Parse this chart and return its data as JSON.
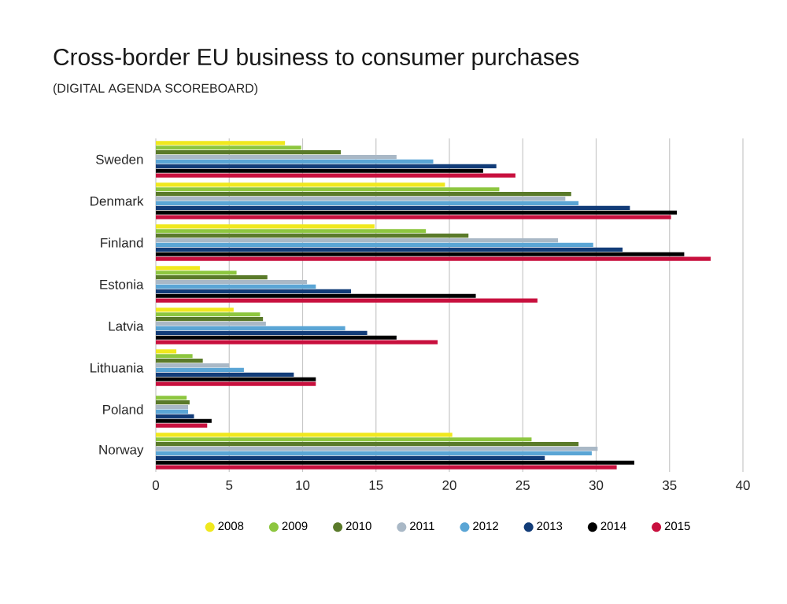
{
  "chart_data": {
    "type": "bar",
    "orientation": "horizontal",
    "title": "Cross-border EU business to consumer purchases",
    "subtitle": "(DIGITAL AGENDA SCOREBOARD)",
    "categories": [
      "Sweden",
      "Denmark",
      "Finland",
      "Estonia",
      "Latvia",
      "Lithuania",
      "Poland",
      "Norway"
    ],
    "series": [
      {
        "name": "2008",
        "color": "#f0e81e",
        "values": [
          8.8,
          19.7,
          14.9,
          3.0,
          5.3,
          1.4,
          null,
          20.2
        ]
      },
      {
        "name": "2009",
        "color": "#8dc63f",
        "values": [
          9.9,
          23.4,
          18.4,
          5.5,
          7.1,
          2.5,
          2.1,
          25.6
        ]
      },
      {
        "name": "2010",
        "color": "#5a7a2a",
        "values": [
          12.6,
          28.3,
          21.3,
          7.6,
          7.3,
          3.2,
          2.3,
          28.8
        ]
      },
      {
        "name": "2011",
        "color": "#a9b8c6",
        "values": [
          16.4,
          27.9,
          27.4,
          10.3,
          7.5,
          5.0,
          2.2,
          30.1
        ]
      },
      {
        "name": "2012",
        "color": "#5aa5d5",
        "values": [
          18.9,
          28.8,
          29.8,
          10.9,
          12.9,
          6.0,
          2.2,
          29.7
        ]
      },
      {
        "name": "2013",
        "color": "#123c78",
        "values": [
          23.2,
          32.3,
          31.8,
          13.3,
          14.4,
          9.4,
          2.6,
          26.5
        ]
      },
      {
        "name": "2014",
        "color": "#000000",
        "values": [
          22.3,
          35.5,
          36.0,
          21.8,
          16.4,
          10.9,
          3.8,
          32.6
        ]
      },
      {
        "name": "2015",
        "color": "#c8103e",
        "values": [
          24.5,
          35.1,
          37.8,
          26.0,
          19.2,
          10.9,
          3.5,
          31.4
        ]
      }
    ],
    "xlim": [
      0,
      40
    ],
    "xticks": [
      0,
      5,
      10,
      15,
      20,
      25,
      30,
      35,
      40
    ],
    "grid": "x",
    "legend": "bottom"
  }
}
